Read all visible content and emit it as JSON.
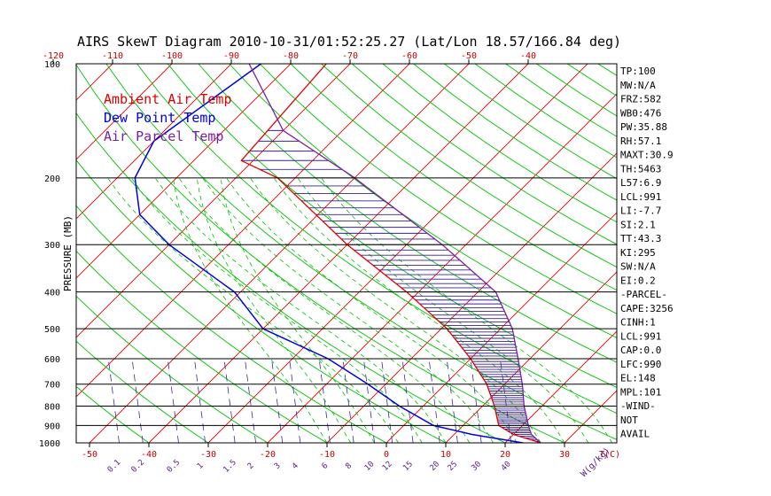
{
  "chart_data": {
    "type": "line",
    "title": "AIRS SkewT Diagram 2010-10-31/01:52:25.27 (Lat/Lon 18.57/166.84 deg)",
    "ylabel": "PRESSURE (MB)",
    "xlabel": "T(C)",
    "mixing_ratio_label": "W(g/kg)",
    "pressure_ticks": [
      "100",
      "200",
      "300",
      "400",
      "500",
      "600",
      "700",
      "800",
      "900",
      "1000"
    ],
    "bottom_temp_ticks": [
      "-50",
      "-40",
      "-30",
      "-20",
      "-10",
      "0",
      "10",
      "20",
      "30"
    ],
    "top_temp_ticks": [
      "-120",
      "-110",
      "-100",
      "-90",
      "-80",
      "-70",
      "-60",
      "-50",
      "-40"
    ],
    "mixing_ratio_ticks": [
      "0.1",
      "0.2",
      "0.5",
      "1",
      "1.5",
      "2",
      "3",
      "4",
      "6",
      "8",
      "10",
      "12",
      "15",
      "20",
      "25",
      "30",
      "40"
    ],
    "legend": [
      {
        "label": "Ambient Air Temp",
        "color": "#e00000"
      },
      {
        "label": "Dew Point Temp",
        "color": "#0000e0"
      },
      {
        "label": "Air Parcel Temp",
        "color": "#7a1fa8"
      }
    ],
    "series": [
      {
        "name": "Ambient Air Temp",
        "color": "#e00000",
        "points": [
          [
            100,
            -74
          ],
          [
            180,
            -72
          ],
          [
            200,
            -63
          ],
          [
            300,
            -40
          ],
          [
            400,
            -22
          ],
          [
            500,
            -9
          ],
          [
            600,
            0
          ],
          [
            700,
            7
          ],
          [
            800,
            12
          ],
          [
            900,
            16
          ],
          [
            950,
            20
          ],
          [
            1000,
            26
          ]
        ]
      },
      {
        "name": "Dew Point Temp",
        "color": "#0000e0",
        "points": [
          [
            100,
            -85
          ],
          [
            160,
            -90
          ],
          [
            200,
            -87
          ],
          [
            250,
            -80
          ],
          [
            300,
            -70
          ],
          [
            400,
            -51
          ],
          [
            500,
            -40
          ],
          [
            600,
            -24
          ],
          [
            700,
            -13
          ],
          [
            800,
            -4
          ],
          [
            900,
            5
          ],
          [
            950,
            13
          ],
          [
            1000,
            23
          ]
        ]
      },
      {
        "name": "Air Parcel Temp",
        "color": "#7a1fa8",
        "points": [
          [
            100,
            -87
          ],
          [
            150,
            -70
          ],
          [
            200,
            -50
          ],
          [
            300,
            -24
          ],
          [
            400,
            -7
          ],
          [
            500,
            2
          ],
          [
            600,
            8
          ],
          [
            700,
            13
          ],
          [
            800,
            17
          ],
          [
            900,
            21
          ],
          [
            950,
            23
          ],
          [
            1000,
            26
          ]
        ]
      }
    ]
  },
  "indices": [
    "TP:100",
    "MW:N/A",
    "FRZ:582",
    "WB0:476",
    "PW:35.88",
    "RH:57.1",
    "MAXT:30.9",
    "TH:5463",
    "L57:6.9",
    "LCL:991",
    "LI:-7.7",
    "SI:2.1",
    "TT:43.3",
    "KI:295",
    "SW:N/A",
    "EI:0.2",
    "-PARCEL-",
    "CAPE:3256",
    "CINH:1",
    "LCL:991",
    "CAP:0.0",
    "LFC:990",
    "EL:148",
    "MPL:101",
    "-WIND-",
    "NOT",
    "AVAIL"
  ],
  "colors": {
    "isotherm": "#e00000",
    "dry_adiabat": "#00c000",
    "moist_adiabat": "#00c000",
    "mixing_ratio": "#3a2aa0",
    "axis_label": "#c00000",
    "mixing_label": "#5a1a8a",
    "hatch": "#3a2090"
  }
}
